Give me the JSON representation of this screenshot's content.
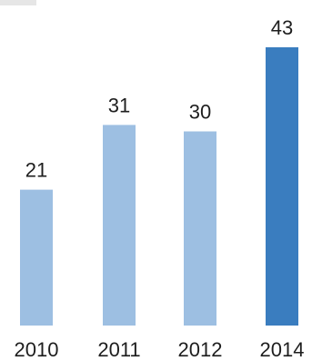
{
  "chart_data": {
    "type": "bar",
    "categories": [
      "2010",
      "2011",
      "2012",
      "2014"
    ],
    "values": [
      21,
      31,
      30,
      43
    ],
    "value_labels": [
      "21",
      "31",
      "30",
      "43"
    ],
    "title": "",
    "xlabel": "",
    "ylabel": "",
    "ylim": [
      0,
      43
    ],
    "grid": false,
    "legend": "none",
    "colors": {
      "default_bar": "#9dbfe2",
      "highlight_bar": "#3a7dbf",
      "text": "#1e1e1e"
    },
    "highlight_index": 3
  }
}
